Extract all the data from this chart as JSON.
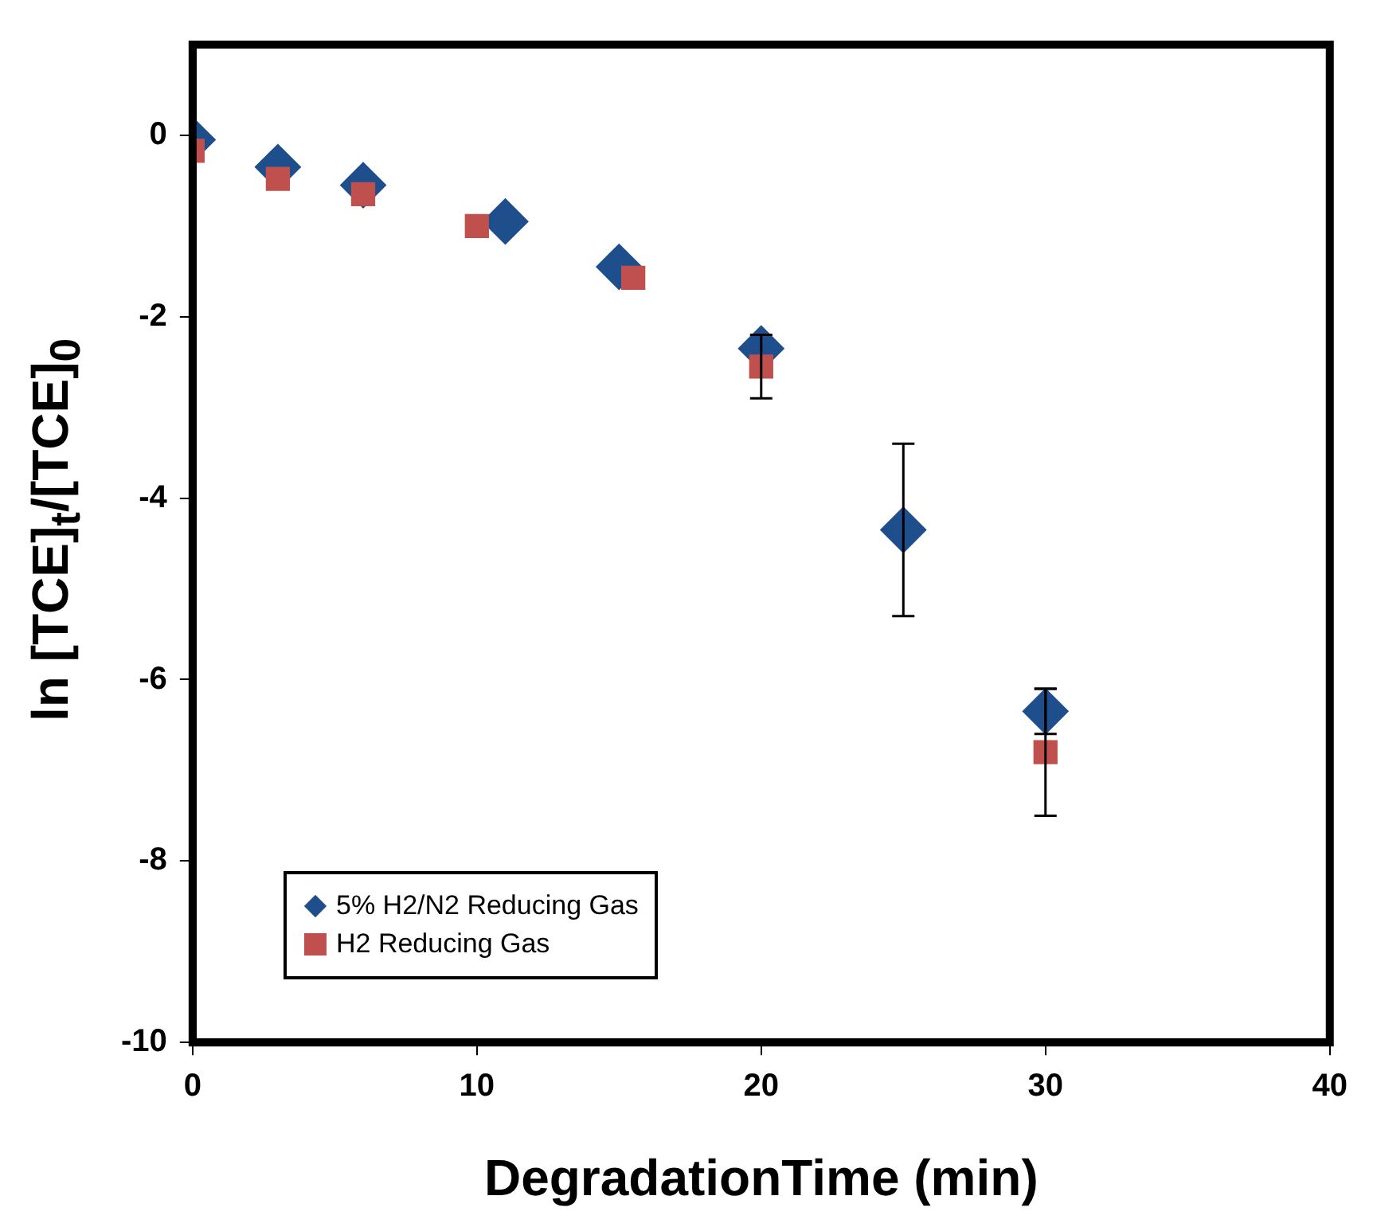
{
  "chart_data": {
    "type": "scatter",
    "xlabel": "DegradationTime (min)",
    "ylabel": "ln [TCE]$_{t}$/[TCE]$_{0}$",
    "xlim": [
      0,
      40
    ],
    "xticks": [
      0,
      10,
      20,
      30,
      40
    ],
    "ylim": [
      -10,
      1
    ],
    "yticks": [
      0,
      -2,
      -4,
      -6,
      -8,
      -10
    ],
    "grid": false,
    "legend": "bottom left",
    "series": [
      {
        "name": "5% H2/N2 Reducing Gas",
        "color": "#1f4e8c",
        "marker": "diamond",
        "x": [
          0,
          3,
          6,
          11,
          15,
          20,
          25,
          30
        ],
        "values": [
          -0.05,
          -0.35,
          -0.55,
          -0.95,
          -1.45,
          -2.35,
          -4.35,
          -6.35
        ],
        "errors": [
          null,
          null,
          null,
          null,
          null,
          null,
          0.95,
          0.25
        ]
      },
      {
        "name": "H2 Reducing Gas",
        "color": "#c0504d",
        "marker": "square",
        "x": [
          0,
          3,
          6,
          10,
          15.5,
          20,
          30
        ],
        "values": [
          -0.17,
          -0.48,
          -0.65,
          -1.0,
          -1.57,
          -2.55,
          -6.8
        ],
        "errors": [
          null,
          null,
          null,
          null,
          null,
          0.35,
          0.7
        ]
      }
    ]
  }
}
